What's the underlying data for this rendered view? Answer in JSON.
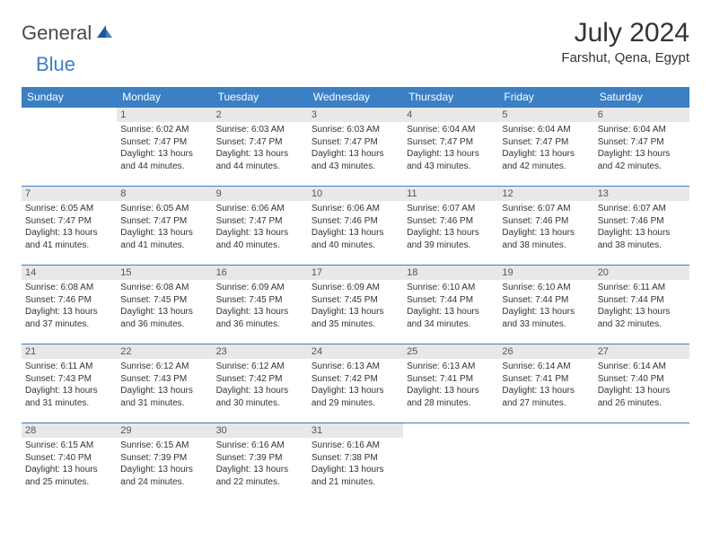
{
  "logo": {
    "general": "General",
    "blue": "Blue"
  },
  "title": "July 2024",
  "location": "Farshut, Qena, Egypt",
  "colors": {
    "header_bg": "#3b7fc4",
    "header_fg": "#ffffff",
    "daynum_bg": "#e8e8e8",
    "border": "#3b7fc4",
    "text": "#333333"
  },
  "dayNames": [
    "Sunday",
    "Monday",
    "Tuesday",
    "Wednesday",
    "Thursday",
    "Friday",
    "Saturday"
  ],
  "weeks": [
    [
      {
        "empty": true
      },
      {
        "n": "1",
        "sr": "6:02 AM",
        "ss": "7:47 PM",
        "dl": "13 hours and 44 minutes."
      },
      {
        "n": "2",
        "sr": "6:03 AM",
        "ss": "7:47 PM",
        "dl": "13 hours and 44 minutes."
      },
      {
        "n": "3",
        "sr": "6:03 AM",
        "ss": "7:47 PM",
        "dl": "13 hours and 43 minutes."
      },
      {
        "n": "4",
        "sr": "6:04 AM",
        "ss": "7:47 PM",
        "dl": "13 hours and 43 minutes."
      },
      {
        "n": "5",
        "sr": "6:04 AM",
        "ss": "7:47 PM",
        "dl": "13 hours and 42 minutes."
      },
      {
        "n": "6",
        "sr": "6:04 AM",
        "ss": "7:47 PM",
        "dl": "13 hours and 42 minutes."
      }
    ],
    [
      {
        "n": "7",
        "sr": "6:05 AM",
        "ss": "7:47 PM",
        "dl": "13 hours and 41 minutes."
      },
      {
        "n": "8",
        "sr": "6:05 AM",
        "ss": "7:47 PM",
        "dl": "13 hours and 41 minutes."
      },
      {
        "n": "9",
        "sr": "6:06 AM",
        "ss": "7:47 PM",
        "dl": "13 hours and 40 minutes."
      },
      {
        "n": "10",
        "sr": "6:06 AM",
        "ss": "7:46 PM",
        "dl": "13 hours and 40 minutes."
      },
      {
        "n": "11",
        "sr": "6:07 AM",
        "ss": "7:46 PM",
        "dl": "13 hours and 39 minutes."
      },
      {
        "n": "12",
        "sr": "6:07 AM",
        "ss": "7:46 PM",
        "dl": "13 hours and 38 minutes."
      },
      {
        "n": "13",
        "sr": "6:07 AM",
        "ss": "7:46 PM",
        "dl": "13 hours and 38 minutes."
      }
    ],
    [
      {
        "n": "14",
        "sr": "6:08 AM",
        "ss": "7:46 PM",
        "dl": "13 hours and 37 minutes."
      },
      {
        "n": "15",
        "sr": "6:08 AM",
        "ss": "7:45 PM",
        "dl": "13 hours and 36 minutes."
      },
      {
        "n": "16",
        "sr": "6:09 AM",
        "ss": "7:45 PM",
        "dl": "13 hours and 36 minutes."
      },
      {
        "n": "17",
        "sr": "6:09 AM",
        "ss": "7:45 PM",
        "dl": "13 hours and 35 minutes."
      },
      {
        "n": "18",
        "sr": "6:10 AM",
        "ss": "7:44 PM",
        "dl": "13 hours and 34 minutes."
      },
      {
        "n": "19",
        "sr": "6:10 AM",
        "ss": "7:44 PM",
        "dl": "13 hours and 33 minutes."
      },
      {
        "n": "20",
        "sr": "6:11 AM",
        "ss": "7:44 PM",
        "dl": "13 hours and 32 minutes."
      }
    ],
    [
      {
        "n": "21",
        "sr": "6:11 AM",
        "ss": "7:43 PM",
        "dl": "13 hours and 31 minutes."
      },
      {
        "n": "22",
        "sr": "6:12 AM",
        "ss": "7:43 PM",
        "dl": "13 hours and 31 minutes."
      },
      {
        "n": "23",
        "sr": "6:12 AM",
        "ss": "7:42 PM",
        "dl": "13 hours and 30 minutes."
      },
      {
        "n": "24",
        "sr": "6:13 AM",
        "ss": "7:42 PM",
        "dl": "13 hours and 29 minutes."
      },
      {
        "n": "25",
        "sr": "6:13 AM",
        "ss": "7:41 PM",
        "dl": "13 hours and 28 minutes."
      },
      {
        "n": "26",
        "sr": "6:14 AM",
        "ss": "7:41 PM",
        "dl": "13 hours and 27 minutes."
      },
      {
        "n": "27",
        "sr": "6:14 AM",
        "ss": "7:40 PM",
        "dl": "13 hours and 26 minutes."
      }
    ],
    [
      {
        "n": "28",
        "sr": "6:15 AM",
        "ss": "7:40 PM",
        "dl": "13 hours and 25 minutes."
      },
      {
        "n": "29",
        "sr": "6:15 AM",
        "ss": "7:39 PM",
        "dl": "13 hours and 24 minutes."
      },
      {
        "n": "30",
        "sr": "6:16 AM",
        "ss": "7:39 PM",
        "dl": "13 hours and 22 minutes."
      },
      {
        "n": "31",
        "sr": "6:16 AM",
        "ss": "7:38 PM",
        "dl": "13 hours and 21 minutes."
      },
      {
        "empty": true
      },
      {
        "empty": true
      },
      {
        "empty": true
      }
    ]
  ],
  "labels": {
    "sunrise": "Sunrise:",
    "sunset": "Sunset:",
    "daylight": "Daylight:"
  }
}
